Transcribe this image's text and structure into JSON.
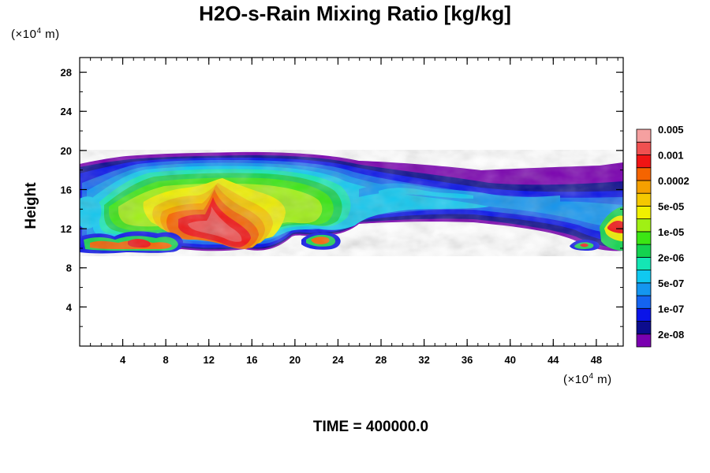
{
  "chart_data": {
    "type": "heatmap",
    "title": "H2O-s-Rain Mixing Ratio [kg/kg]",
    "ylabel": "Height",
    "x_unit": {
      "prefix": "(×10",
      "exp": "4",
      "suffix": " m)"
    },
    "y_unit": {
      "prefix": "(×10",
      "exp": "4",
      "suffix": " m)"
    },
    "xlim": [
      0,
      50.5
    ],
    "ylim": [
      0,
      29.5
    ],
    "x_ticks": [
      4,
      8,
      12,
      16,
      20,
      24,
      28,
      32,
      36,
      40,
      44,
      48
    ],
    "y_ticks": [
      4,
      8,
      12,
      16,
      20,
      24,
      28
    ],
    "colorbar": {
      "colors": [
        "#7a00b0",
        "#0c0c8e",
        "#0a14e8",
        "#1464f0",
        "#1496f0",
        "#10c8f0",
        "#14e6b4",
        "#14d250",
        "#3ce614",
        "#a0f014",
        "#f0f000",
        "#f5c800",
        "#f5a000",
        "#f56400",
        "#f01414",
        "#f05050",
        "#f5a0a0"
      ],
      "labels": [
        "2e-08",
        "1e-07",
        "5e-07",
        "2e-06",
        "1e-05",
        "5e-05",
        "0.0002",
        "0.001",
        "0.005"
      ]
    },
    "time_label": "TIME = 400000.0"
  }
}
